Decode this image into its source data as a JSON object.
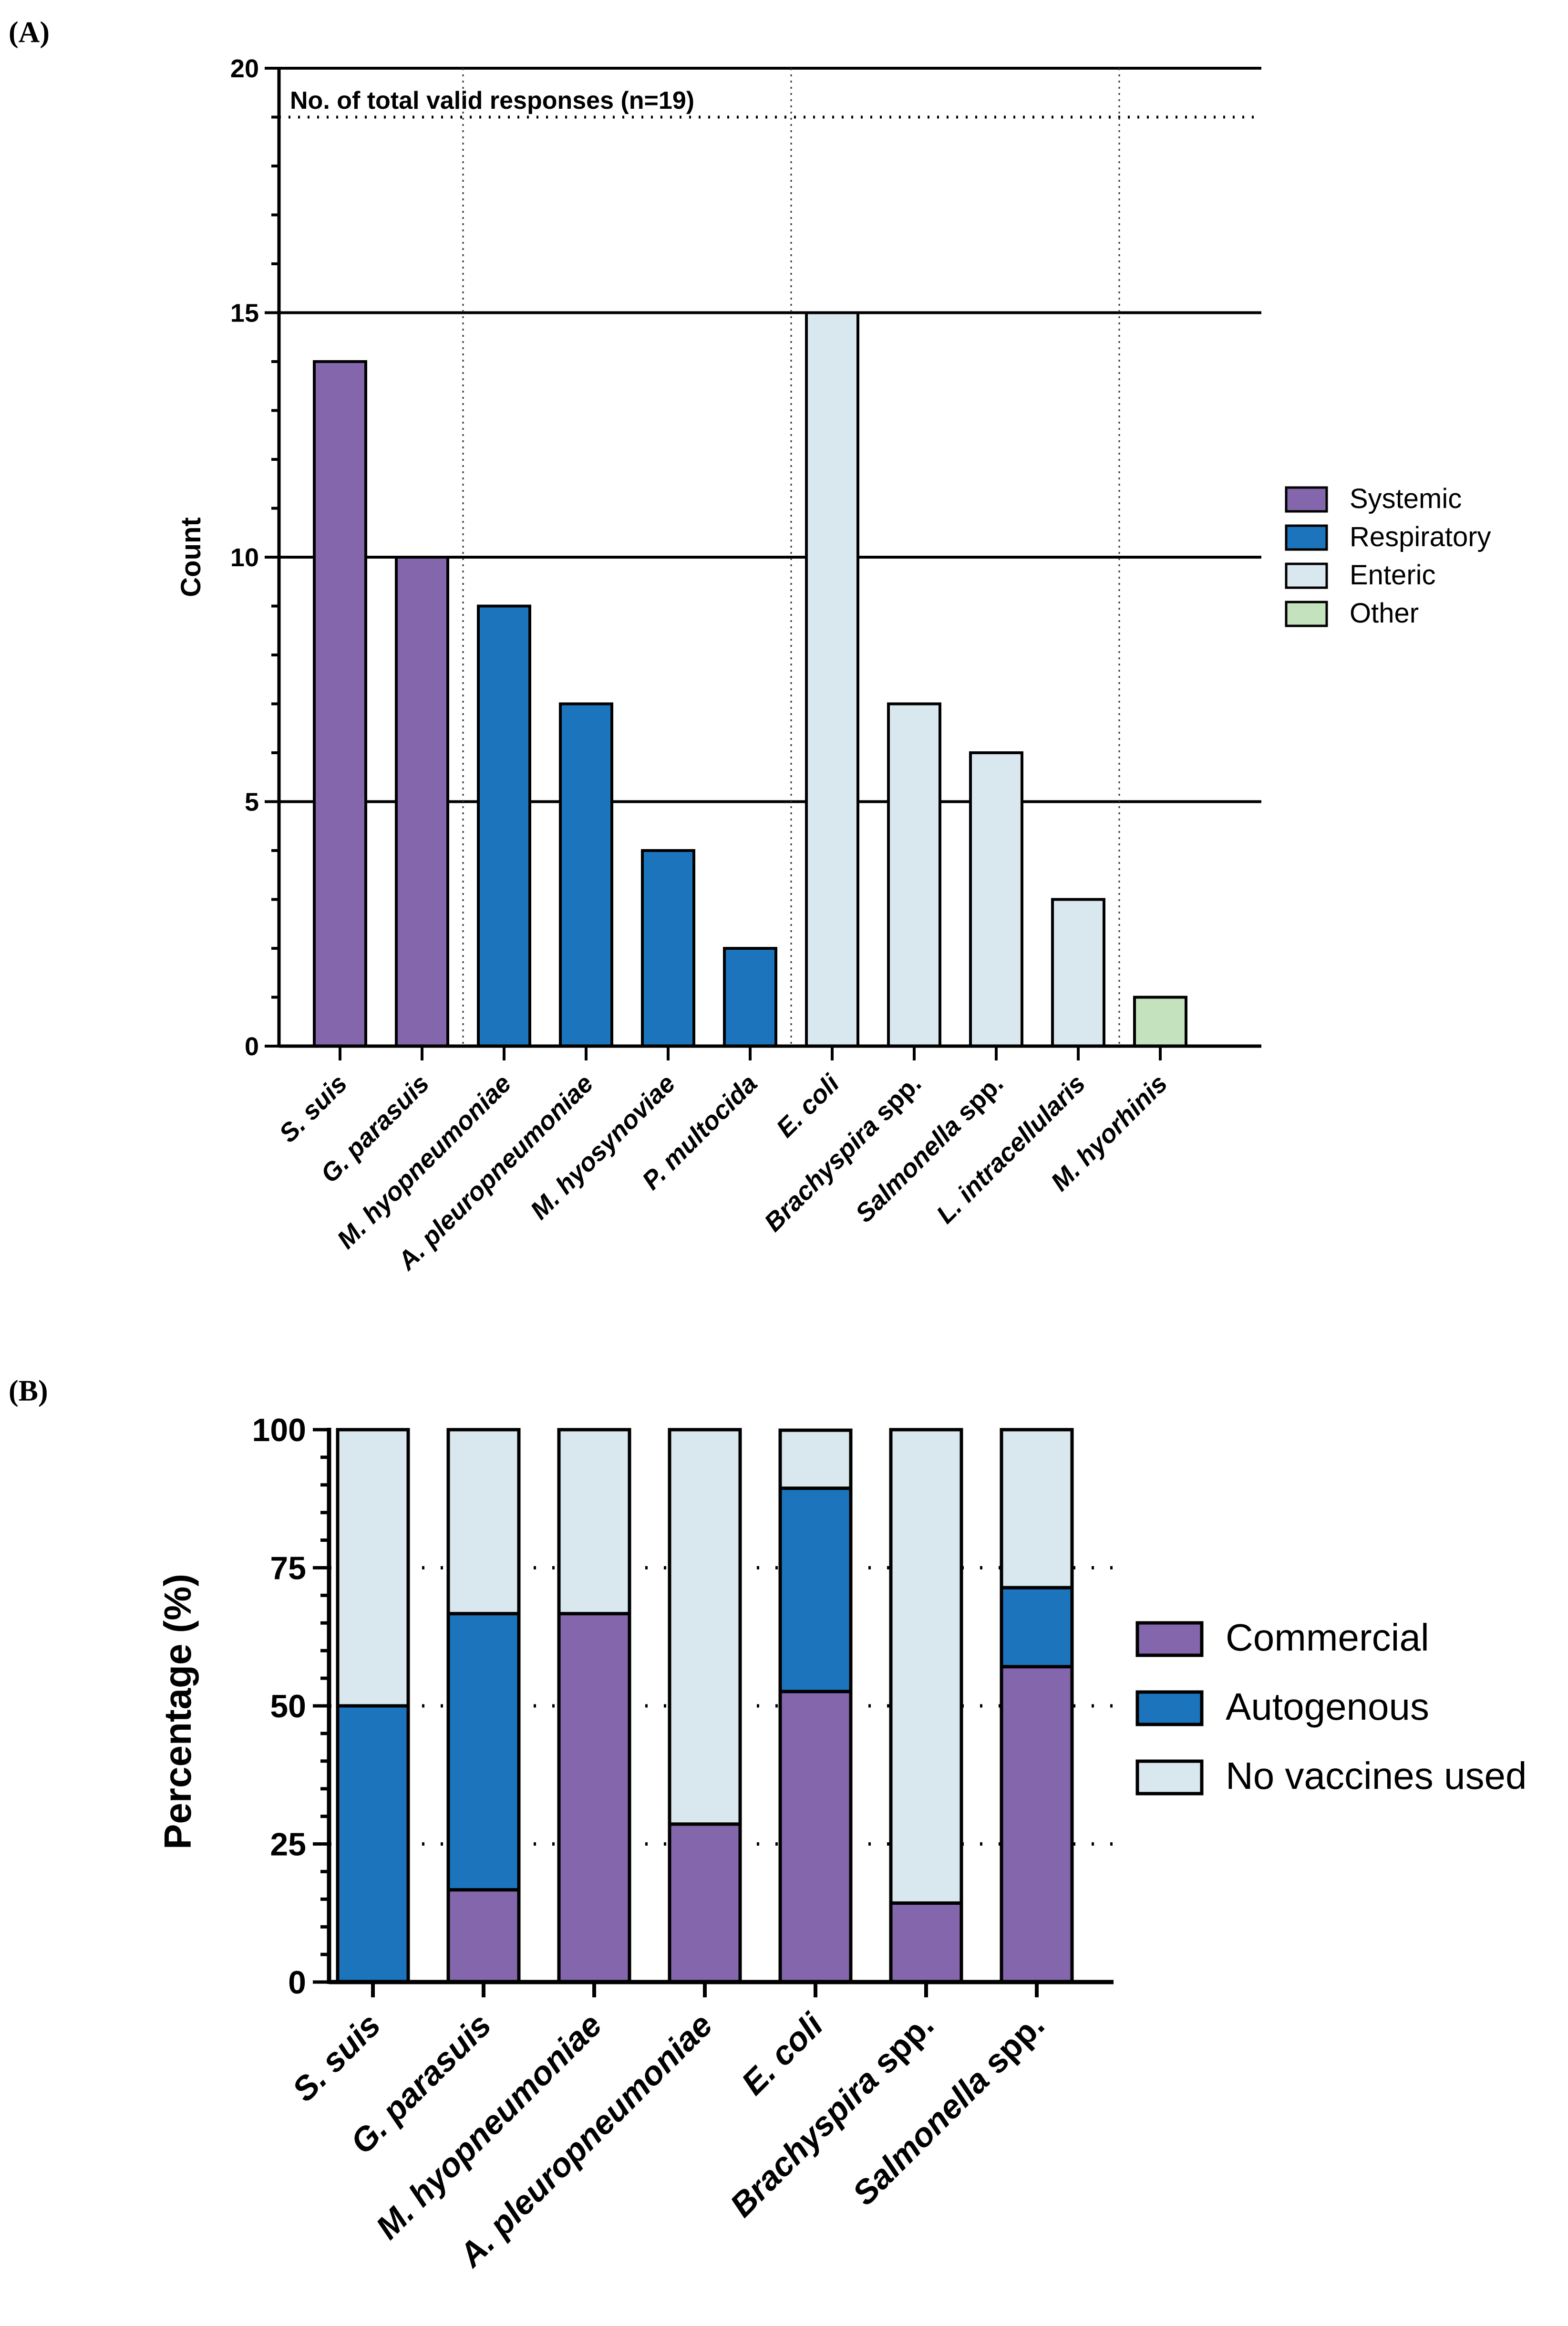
{
  "colors": {
    "Systemic": "#8466AC",
    "Respiratory": "#1C75BC",
    "Enteric": "#D8E8EE",
    "Other": "#C4E2BE",
    "Commercial": "#8466AC",
    "Autogenous": "#1C75BC",
    "No vaccines used": "#D8E8EE"
  },
  "chart_data": [
    {
      "panel_label": "(A)",
      "type": "bar",
      "ylabel": "Count",
      "xlabel": "",
      "ylim": [
        0,
        20
      ],
      "yticks": [
        "0",
        "5",
        "10",
        "15",
        "20"
      ],
      "gridlines": [
        5,
        10,
        15,
        20
      ],
      "reference_line": {
        "value": 19,
        "label": "No. of total valid responses (n=19)"
      },
      "categories": [
        {
          "name": "S. suis",
          "italic": "S. suis",
          "suffix": "",
          "value": 14,
          "group": "Systemic"
        },
        {
          "name": "G. parasuis",
          "italic": "G. parasuis",
          "suffix": "",
          "value": 10,
          "group": "Systemic"
        },
        {
          "name": "M. hyopneumoniae",
          "italic": "M. hyopneumoniae",
          "suffix": "",
          "value": 9,
          "group": "Respiratory"
        },
        {
          "name": "A. pleuropneumoniae",
          "italic": "A. pleuropneumoniae",
          "suffix": "",
          "value": 7,
          "group": "Respiratory"
        },
        {
          "name": "M. hyosynoviae",
          "italic": "M. hyosynoviae",
          "suffix": "",
          "value": 4,
          "group": "Respiratory"
        },
        {
          "name": "P. multocida",
          "italic": "P. multocida",
          "suffix": "",
          "value": 2,
          "group": "Respiratory"
        },
        {
          "name": "E. coli",
          "italic": "E. coli",
          "suffix": "",
          "value": 15,
          "group": "Enteric"
        },
        {
          "name": "Brachyspira spp.",
          "italic": "Brachyspira",
          "suffix": " spp.",
          "value": 7,
          "group": "Enteric"
        },
        {
          "name": "Salmonella spp.",
          "italic": "Salmonella",
          "suffix": " spp.",
          "value": 6,
          "group": "Enteric"
        },
        {
          "name": "L. intracellularis",
          "italic": "L. intracellularis",
          "suffix": "",
          "value": 3,
          "group": "Enteric"
        },
        {
          "name": "M. hyorhinis",
          "italic": "M. hyorhinis",
          "suffix": "",
          "value": 1,
          "group": "Other"
        }
      ],
      "legend": [
        "Systemic",
        "Respiratory",
        "Enteric",
        "Other"
      ]
    },
    {
      "panel_label": "(B)",
      "type": "stacked-bar",
      "ylabel": "Percentage (%)",
      "xlabel": "",
      "ylim": [
        0,
        100
      ],
      "yticks": [
        "0",
        "25",
        "50",
        "75",
        "100"
      ],
      "gridlines": [
        25,
        50,
        75
      ],
      "categories": [
        {
          "name": "S. suis",
          "italic": "S. suis",
          "suffix": ""
        },
        {
          "name": "G. parasuis",
          "italic": "G. parasuis",
          "suffix": ""
        },
        {
          "name": "M. hyopneumoniae",
          "italic": "M. hyopneumoniae",
          "suffix": ""
        },
        {
          "name": "A. pleuropneumoniae",
          "italic": "A. pleuropneumoniae",
          "suffix": ""
        },
        {
          "name": "E. coli",
          "italic": "E. coli",
          "suffix": ""
        },
        {
          "name": "Brachyspira spp.",
          "italic": "Brachyspira",
          "suffix": " spp."
        },
        {
          "name": "Salmonella spp.",
          "italic": "Salmonella",
          "suffix": " spp."
        }
      ],
      "series": [
        {
          "name": "Commercial",
          "values": [
            0,
            16.7,
            66.7,
            28.6,
            52.6,
            14.3,
            57.1
          ]
        },
        {
          "name": "Autogenous",
          "values": [
            50,
            50,
            0,
            0,
            36.8,
            0,
            14.3
          ]
        },
        {
          "name": "No vaccines used",
          "values": [
            50,
            33.3,
            33.3,
            71.4,
            10.5,
            85.7,
            28.6
          ]
        }
      ],
      "legend": [
        "Commercial",
        "Autogenous",
        "No vaccines used"
      ]
    }
  ]
}
